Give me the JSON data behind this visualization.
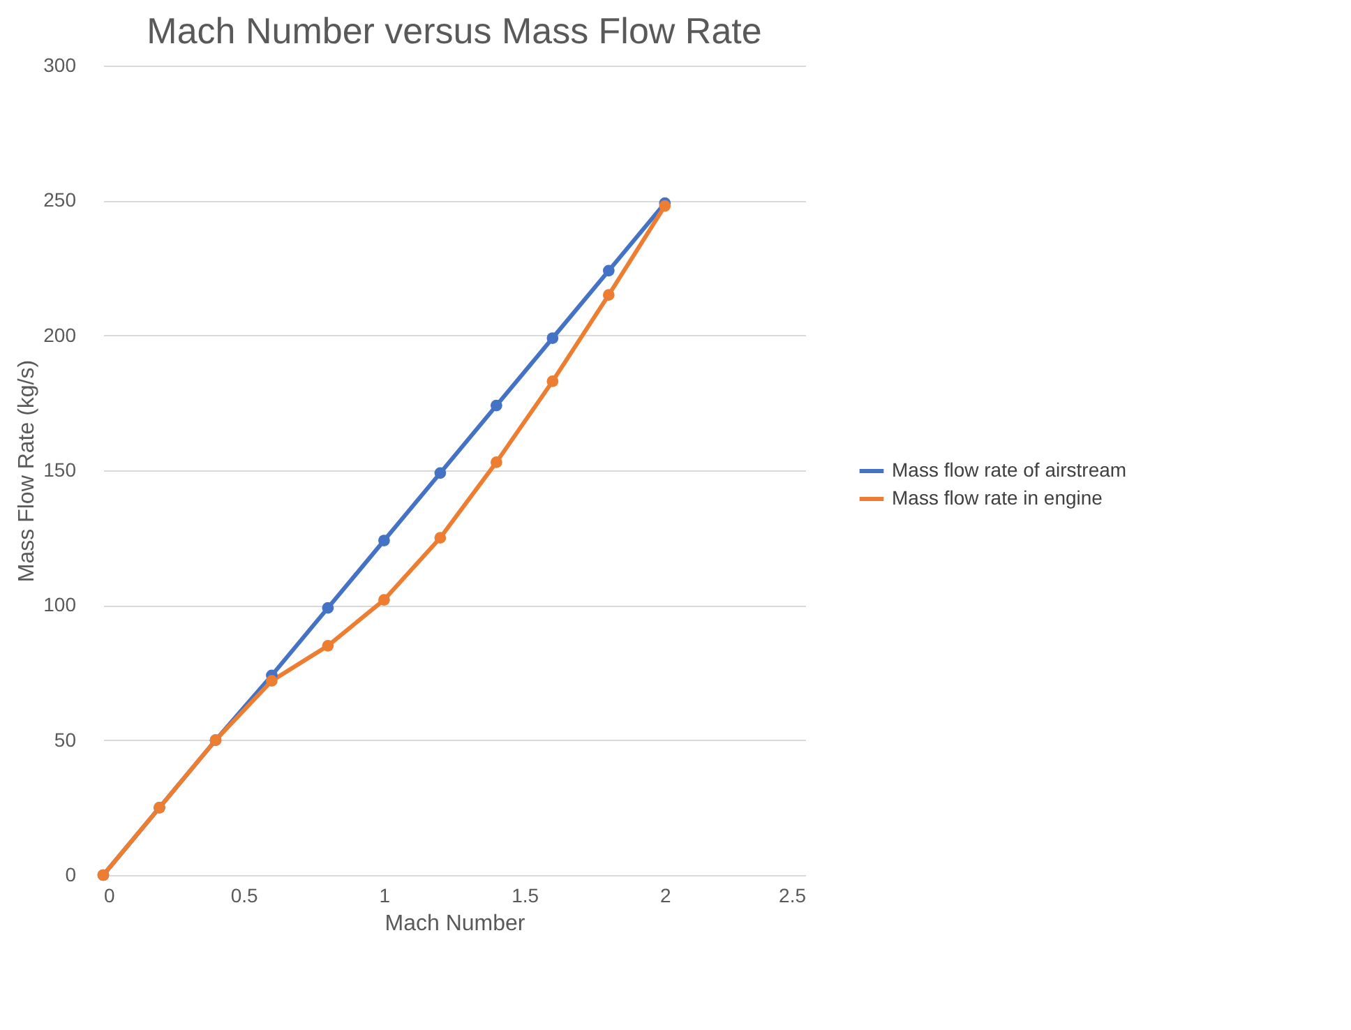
{
  "chart_data": {
    "type": "line",
    "title": "Mach Number versus Mass Flow Rate",
    "xlabel": "Mach Number",
    "ylabel": "Mass Flow Rate (kg/s)",
    "x": [
      0,
      0.2,
      0.4,
      0.6,
      0.8,
      1.0,
      1.2,
      1.4,
      1.6,
      1.8,
      2.0
    ],
    "series": [
      {
        "name": "Mass flow rate of airstream",
        "color": "#4472c4",
        "values": [
          0,
          25,
          50,
          74,
          99,
          124,
          149,
          174,
          199,
          224,
          249
        ]
      },
      {
        "name": "Mass flow rate in engine",
        "color": "#ed7d31",
        "values": [
          0,
          25,
          50,
          72,
          85,
          102,
          125,
          153,
          183,
          215,
          248
        ]
      }
    ],
    "xlim": [
      0,
      2.5
    ],
    "xticks": [
      0,
      0.5,
      1,
      1.5,
      2,
      2.5
    ],
    "ylim": [
      0,
      300
    ],
    "yticks": [
      0,
      50,
      100,
      150,
      200,
      250,
      300
    ],
    "grid": "y",
    "legend": "right",
    "marker": "circle",
    "line_style": "solid"
  }
}
